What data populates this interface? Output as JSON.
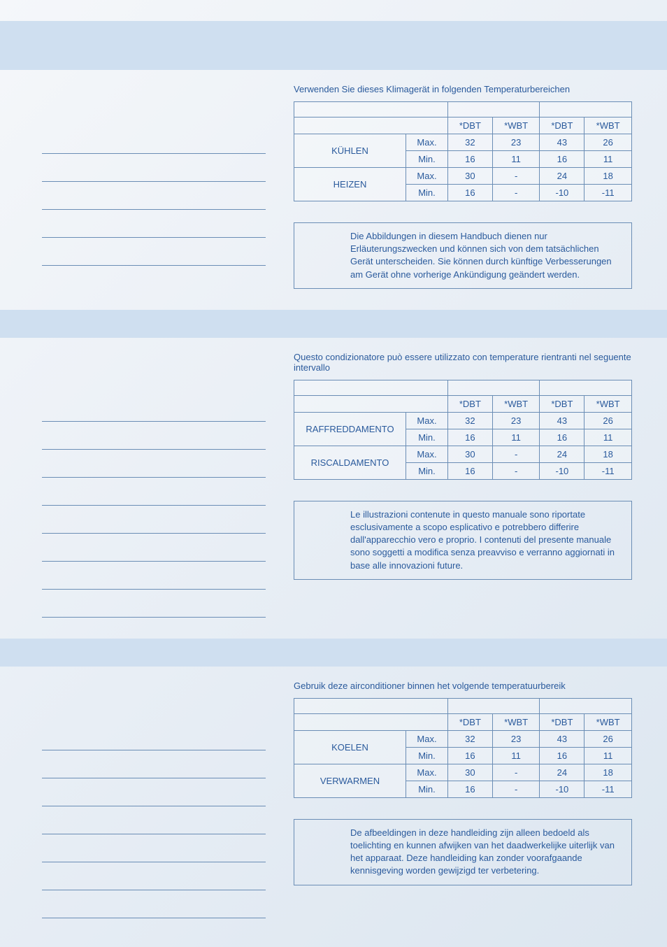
{
  "colors": {
    "text": "#2a5a9c",
    "border": "#6a8db5",
    "bar": "#cfdff0"
  },
  "sections": [
    {
      "caption": "Verwenden Sie dieses Klimagerät in folgenden Temperaturbereichen",
      "cols": [
        "*DBT",
        "*WBT",
        "*DBT",
        "*WBT"
      ],
      "rows": [
        {
          "label": "KÜHLEN",
          "sub": "Max.",
          "vals": [
            "32",
            "23",
            "43",
            "26"
          ]
        },
        {
          "label": "",
          "sub": "Min.",
          "vals": [
            "16",
            "11",
            "16",
            "11"
          ]
        },
        {
          "label": "HEIZEN",
          "sub": "Max.",
          "vals": [
            "30",
            "-",
            "24",
            "18"
          ]
        },
        {
          "label": "",
          "sub": "Min.",
          "vals": [
            "16",
            "-",
            "-10",
            "-11"
          ]
        }
      ],
      "note": "Die Abbildungen in diesem Handbuch dienen nur Erläuterungszwecken und können sich von dem tatsächlichen Gerät unterscheiden. Sie können durch künftige Verbesserungen am Gerät ohne vorherige Ankündigung geändert werden.",
      "left_lines": 5
    },
    {
      "caption": "Questo condizionatore può essere utilizzato con temperature rientranti nel seguente intervallo",
      "cols": [
        "*DBT",
        "*WBT",
        "*DBT",
        "*WBT"
      ],
      "rows": [
        {
          "label": "RAFFREDDAMENTO",
          "sub": "Max.",
          "vals": [
            "32",
            "23",
            "43",
            "26"
          ]
        },
        {
          "label": "",
          "sub": "Min.",
          "vals": [
            "16",
            "11",
            "16",
            "11"
          ]
        },
        {
          "label": "RISCALDAMENTO",
          "sub": "Max.",
          "vals": [
            "30",
            "-",
            "24",
            "18"
          ]
        },
        {
          "label": "",
          "sub": "Min.",
          "vals": [
            "16",
            "-",
            "-10",
            "-11"
          ]
        }
      ],
      "note": "Le illustrazioni contenute in questo manuale sono riportate esclusivamente a scopo esplicativo e potrebbero differire dall'apparecchio vero e proprio. I contenuti del presente manuale sono soggetti a modifica senza preavviso e verranno aggiornati in base alle innovazioni future.",
      "left_lines": 8
    },
    {
      "caption": "Gebruik deze airconditioner binnen het volgende temperatuurbereik",
      "cols": [
        "*DBT",
        "*WBT",
        "*DBT",
        "*WBT"
      ],
      "rows": [
        {
          "label": "KOELEN",
          "sub": "Max.",
          "vals": [
            "32",
            "23",
            "43",
            "26"
          ]
        },
        {
          "label": "",
          "sub": "Min.",
          "vals": [
            "16",
            "11",
            "16",
            "11"
          ]
        },
        {
          "label": "VERWARMEN",
          "sub": "Max.",
          "vals": [
            "30",
            "-",
            "24",
            "18"
          ]
        },
        {
          "label": "",
          "sub": "Min.",
          "vals": [
            "16",
            "-",
            "-10",
            "-11"
          ]
        }
      ],
      "note": "De afbeeldingen in deze handleiding zijn alleen bedoeld als toelichting en kunnen afwijken van het daadwerkelijke uiterlijk van het apparaat. Deze handleiding kan zonder voorafgaande kennisgeving worden gewijzigd ter verbetering.",
      "left_lines": 7
    }
  ]
}
